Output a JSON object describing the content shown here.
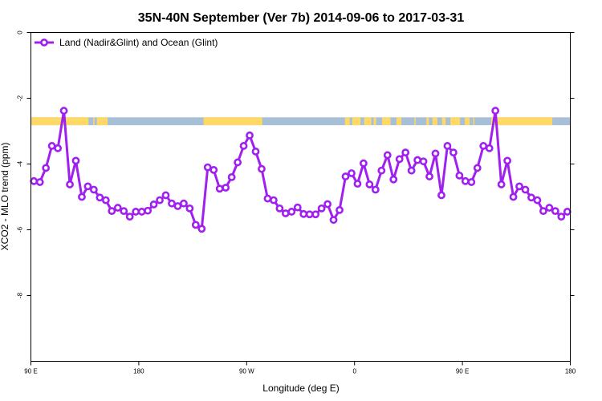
{
  "chart_data": {
    "type": "line",
    "title": "35N-40N September (Ver 7b)   2014-09-06 to 2017-03-31",
    "xlabel": "Longitude (deg E)",
    "ylabel": "XCO2 - MLO trend (ppm)",
    "xlim": [
      90,
      540
    ],
    "ylim": [
      -10,
      0
    ],
    "x_ticks": [
      {
        "value": 90,
        "label": "90 E"
      },
      {
        "value": 180,
        "label": "180"
      },
      {
        "value": 270,
        "label": "90 W"
      },
      {
        "value": 360,
        "label": "0"
      },
      {
        "value": 450,
        "label": "90 E"
      },
      {
        "value": 540,
        "label": "180"
      }
    ],
    "y_ticks": [
      {
        "value": 0,
        "label": "0"
      },
      {
        "value": -2,
        "label": "-2"
      },
      {
        "value": -4,
        "label": "-4"
      },
      {
        "value": -6,
        "label": "-6"
      },
      {
        "value": -8,
        "label": "-8"
      }
    ],
    "legend": {
      "position": "top-left",
      "entries": [
        "Land (Nadir&Glint) and Ocean (Glint)"
      ]
    },
    "grid": false,
    "colors": {
      "series": "#a020f0",
      "land": "#ffd966",
      "ocean": "#a8bfd8"
    },
    "land_ocean_band": {
      "y_range": [
        -2.58,
        -2.82
      ],
      "land_ranges": [
        [
          90,
          138
        ],
        [
          142,
          143
        ],
        [
          145,
          147
        ],
        [
          147,
          154
        ],
        [
          234,
          283
        ],
        [
          352,
          356
        ],
        [
          358,
          365
        ],
        [
          368,
          374
        ],
        [
          376,
          378
        ],
        [
          383,
          390
        ],
        [
          395,
          399
        ],
        [
          410,
          411
        ],
        [
          420,
          422
        ],
        [
          425,
          429
        ],
        [
          433,
          436
        ],
        [
          440,
          448
        ],
        [
          452,
          456
        ],
        [
          459,
          460
        ],
        [
          474,
          525
        ]
      ]
    },
    "series": [
      {
        "name": "Land (Nadir&Glint) and Ocean (Glint)",
        "x": [
          92.5,
          97.5,
          102.5,
          107.5,
          112.5,
          117.5,
          122.5,
          127.5,
          132.5,
          137.5,
          142.5,
          147.5,
          152.5,
          157.5,
          162.5,
          167.5,
          172.5,
          177.5,
          182.5,
          187.5,
          192.5,
          197.5,
          202.5,
          207.5,
          212.5,
          217.5,
          222.5,
          227.5,
          232.5,
          237.5,
          242.5,
          247.5,
          252.5,
          257.5,
          262.5,
          267.5,
          272.5,
          277.5,
          282.5,
          287.5,
          292.5,
          297.5,
          302.5,
          307.5,
          312.5,
          317.5,
          322.5,
          327.5,
          332.5,
          337.5,
          342.5,
          347.5,
          352.5,
          357.5,
          362.5,
          367.5,
          372.5,
          377.5,
          382.5,
          387.5,
          392.5,
          397.5,
          402.5,
          407.5,
          412.5,
          417.5,
          422.5,
          427.5,
          432.5,
          437.5,
          442.5,
          447.5,
          452.5,
          457.5,
          462.5,
          467.5,
          472.5,
          477.5,
          482.5,
          487.5,
          492.5,
          497.5,
          502.5,
          507.5,
          512.5,
          517.5,
          522.5,
          527.5,
          532.5,
          537.5
        ],
        "values": [
          -4.52,
          -4.55,
          -4.12,
          -3.45,
          -3.52,
          -2.38,
          -4.62,
          -3.9,
          -5.0,
          -4.68,
          -4.78,
          -5.02,
          -5.1,
          -5.43,
          -5.33,
          -5.43,
          -5.6,
          -5.45,
          -5.45,
          -5.42,
          -5.23,
          -5.1,
          -4.95,
          -5.2,
          -5.28,
          -5.2,
          -5.35,
          -5.85,
          -5.97,
          -4.1,
          -4.18,
          -4.75,
          -4.72,
          -4.4,
          -3.95,
          -3.45,
          -3.13,
          -3.62,
          -4.15,
          -5.05,
          -5.1,
          -5.35,
          -5.5,
          -5.45,
          -5.32,
          -5.52,
          -5.53,
          -5.53,
          -5.35,
          -5.22,
          -5.7,
          -5.4,
          -4.38,
          -4.28,
          -4.6,
          -3.98,
          -4.62,
          -4.78,
          -4.2,
          -3.73,
          -4.47,
          -3.85,
          -3.65,
          -4.2,
          -3.88,
          -3.92,
          -4.38,
          -3.68,
          -4.95,
          -3.45,
          -3.65,
          -4.35,
          -4.52,
          -4.55,
          -4.12,
          -3.45,
          -3.52,
          -2.38,
          -4.62,
          -3.9,
          -5.0,
          -4.68,
          -4.78,
          -5.02,
          -5.1,
          -5.43,
          -5.33,
          -5.43,
          -5.6,
          -5.45
        ]
      }
    ]
  }
}
